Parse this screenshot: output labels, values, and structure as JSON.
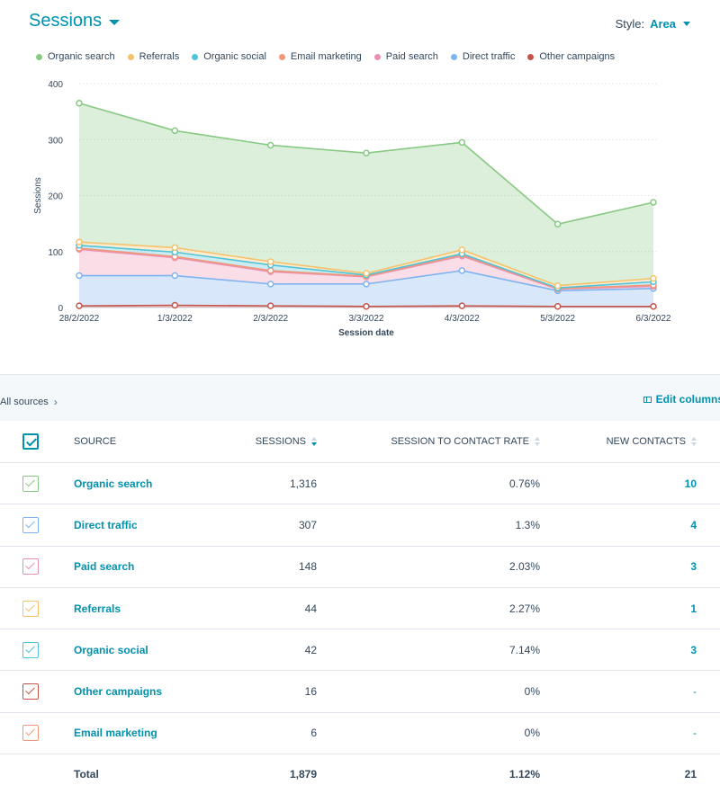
{
  "header": {
    "title": "Sessions",
    "style_label": "Style:",
    "style_value": "Area"
  },
  "legend": [
    {
      "label": "Organic search",
      "color": "#88c983"
    },
    {
      "label": "Referrals",
      "color": "#f5c26b"
    },
    {
      "label": "Organic social",
      "color": "#4fc3d8"
    },
    {
      "label": "Email marketing",
      "color": "#f2987a"
    },
    {
      "label": "Paid search",
      "color": "#ea90b1"
    },
    {
      "label": "Direct traffic",
      "color": "#7fb3f0"
    },
    {
      "label": "Other campaigns",
      "color": "#c4544a"
    }
  ],
  "chart_data": {
    "type": "area",
    "stacked": true,
    "xlabel": "Session date",
    "ylabel": "Sessions",
    "ylim": [
      0,
      400
    ],
    "yticks": [
      "0",
      "100",
      "200",
      "300",
      "400"
    ],
    "categories": [
      "28/2/2022",
      "1/3/2022",
      "2/3/2022",
      "3/3/2022",
      "4/3/2022",
      "5/3/2022",
      "6/3/2022"
    ],
    "series": [
      {
        "name": "Other campaigns",
        "color": "#c4544a",
        "cumulative": [
          3,
          4,
          3,
          2,
          3,
          2,
          2
        ]
      },
      {
        "name": "Direct traffic",
        "color": "#7fb3f0",
        "cumulative": [
          57,
          57,
          42,
          42,
          66,
          30,
          34
        ]
      },
      {
        "name": "Paid search",
        "color": "#ea90b1",
        "cumulative": [
          104,
          89,
          64,
          55,
          92,
          33,
          38
        ]
      },
      {
        "name": "Email marketing",
        "color": "#f2987a",
        "cumulative": [
          106,
          91,
          66,
          56,
          94,
          34,
          40
        ]
      },
      {
        "name": "Organic social",
        "color": "#4fc3d8",
        "cumulative": [
          111,
          99,
          76,
          58,
          96,
          35,
          46
        ]
      },
      {
        "name": "Referrals",
        "color": "#f5c26b",
        "cumulative": [
          117,
          107,
          82,
          61,
          103,
          39,
          52
        ]
      },
      {
        "name": "Organic search",
        "color": "#88c983",
        "cumulative": [
          365,
          316,
          290,
          276,
          295,
          149,
          188
        ]
      }
    ],
    "grid": true,
    "legend_placement": "top"
  },
  "toolbar": {
    "breadcrumb": "All sources",
    "edit_columns": "Edit columns"
  },
  "table": {
    "columns": {
      "source": "SOURCE",
      "sessions": "SESSIONS",
      "rate": "SESSION TO CONTACT RATE",
      "new_contacts": "NEW CONTACTS"
    },
    "rows": [
      {
        "source": "Organic search",
        "sessions": "1,316",
        "rate": "0.76%",
        "new_contacts": "10",
        "color": "#88c983"
      },
      {
        "source": "Direct traffic",
        "sessions": "307",
        "rate": "1.3%",
        "new_contacts": "4",
        "color": "#7fb3f0"
      },
      {
        "source": "Paid search",
        "sessions": "148",
        "rate": "2.03%",
        "new_contacts": "3",
        "color": "#ea90b1"
      },
      {
        "source": "Referrals",
        "sessions": "44",
        "rate": "2.27%",
        "new_contacts": "1",
        "color": "#f5c26b"
      },
      {
        "source": "Organic social",
        "sessions": "42",
        "rate": "7.14%",
        "new_contacts": "3",
        "color": "#4fc3d8"
      },
      {
        "source": "Other campaigns",
        "sessions": "16",
        "rate": "0%",
        "new_contacts": "-",
        "color": "#c4544a"
      },
      {
        "source": "Email marketing",
        "sessions": "6",
        "rate": "0%",
        "new_contacts": "-",
        "color": "#f2987a"
      }
    ],
    "total": {
      "label": "Total",
      "sessions": "1,879",
      "rate": "1.12%",
      "new_contacts": "21"
    }
  }
}
